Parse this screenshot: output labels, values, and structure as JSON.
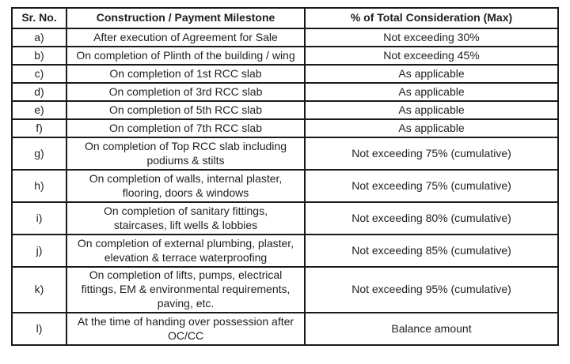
{
  "table": {
    "columns": [
      "Sr. No.",
      "Construction / Payment Milestone",
      "% of Total Consideration (Max)"
    ],
    "rows": [
      {
        "sr": "a)",
        "milestone": "After execution of Agreement for Sale",
        "consideration": "Not exceeding 30%"
      },
      {
        "sr": "b)",
        "milestone": "On completion of Plinth of the building / wing",
        "consideration": "Not exceeding 45%"
      },
      {
        "sr": "c)",
        "milestone": "On completion of 1st RCC slab",
        "consideration": "As applicable"
      },
      {
        "sr": "d)",
        "milestone": "On completion of 3rd RCC slab",
        "consideration": "As applicable"
      },
      {
        "sr": "e)",
        "milestone": "On completion of 5th RCC slab",
        "consideration": "As applicable"
      },
      {
        "sr": "f)",
        "milestone": "On completion of 7th RCC slab",
        "consideration": "As applicable"
      },
      {
        "sr": "g)",
        "milestone": "On completion of Top RCC slab including\npodiums & stilts",
        "consideration": "Not exceeding 75% (cumulative)"
      },
      {
        "sr": "h)",
        "milestone": "On completion of walls, internal plaster,\nflooring, doors & windows",
        "consideration": "Not exceeding 75% (cumulative)"
      },
      {
        "sr": "i)",
        "milestone": "On completion of sanitary fittings,\nstaircases, lift wells & lobbies",
        "consideration": "Not exceeding 80% (cumulative)"
      },
      {
        "sr": "j)",
        "milestone": "On completion of external plumbing, plaster,\nelevation & terrace waterproofing",
        "consideration": "Not exceeding 85% (cumulative)"
      },
      {
        "sr": "k)",
        "milestone": "On completion of lifts, pumps, electrical\nfittings, EM & environmental requirements,\npaving, etc.",
        "consideration": "Not exceeding 95% (cumulative)"
      },
      {
        "sr": "l)",
        "milestone": "At the time of handing over possession after\nOC/CC",
        "consideration": "Balance amount"
      }
    ],
    "colors": {
      "border": "#1a1a1a",
      "text": "#1f1f1f",
      "background": "#ffffff"
    }
  }
}
